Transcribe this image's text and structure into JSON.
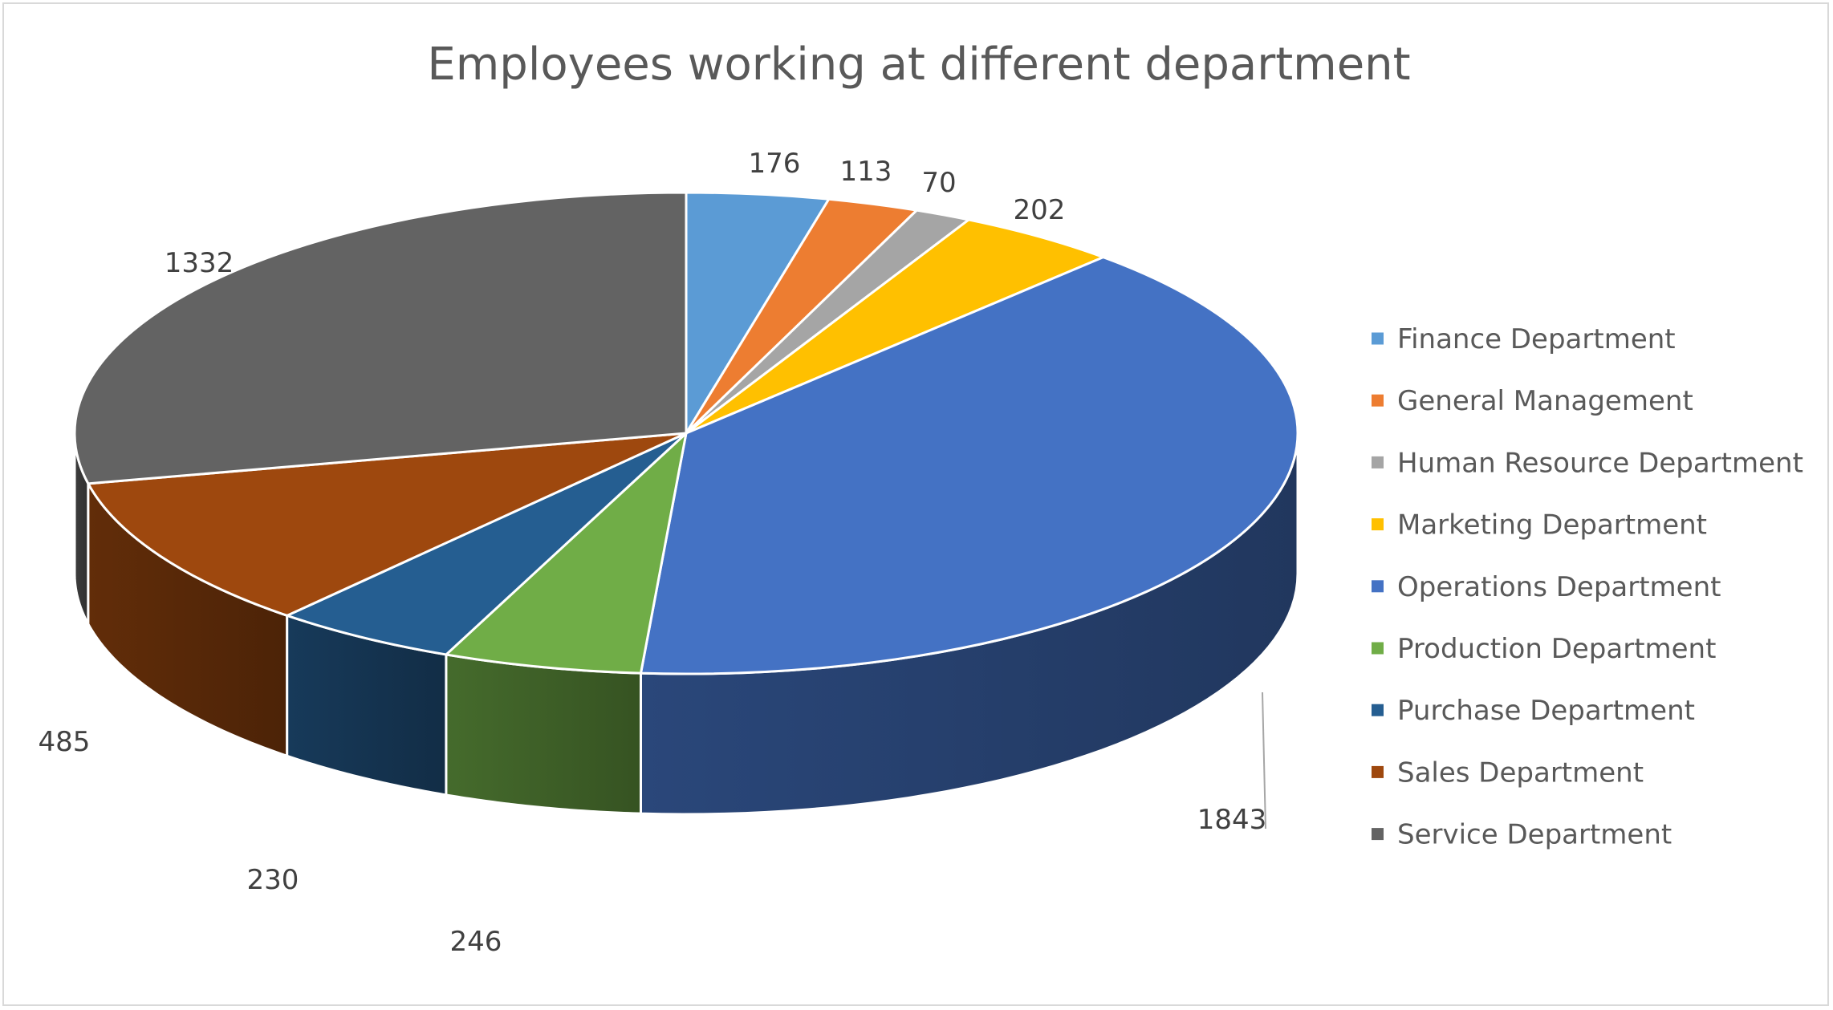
{
  "chart_data": {
    "type": "pie",
    "style": "3d",
    "title": "Employees working at different department",
    "categories": [
      "Finance Department",
      "General Management",
      "Human Resource Department",
      "Marketing Department",
      "Operations Department",
      "Production Department",
      "Purchase Department",
      "Sales Department",
      "Service Department"
    ],
    "values": [
      176,
      113,
      70,
      202,
      1843,
      246,
      230,
      485,
      1332
    ],
    "data_labels": [
      "176",
      "113",
      "70",
      "202",
      "1843",
      "246",
      "230",
      "485",
      "1332"
    ],
    "colors": [
      "#5b9bd5",
      "#ed7d31",
      "#a5a5a5",
      "#ffc000",
      "#4472c4",
      "#70ad47",
      "#255e91",
      "#9e480e",
      "#636363"
    ],
    "legend_position": "right"
  }
}
